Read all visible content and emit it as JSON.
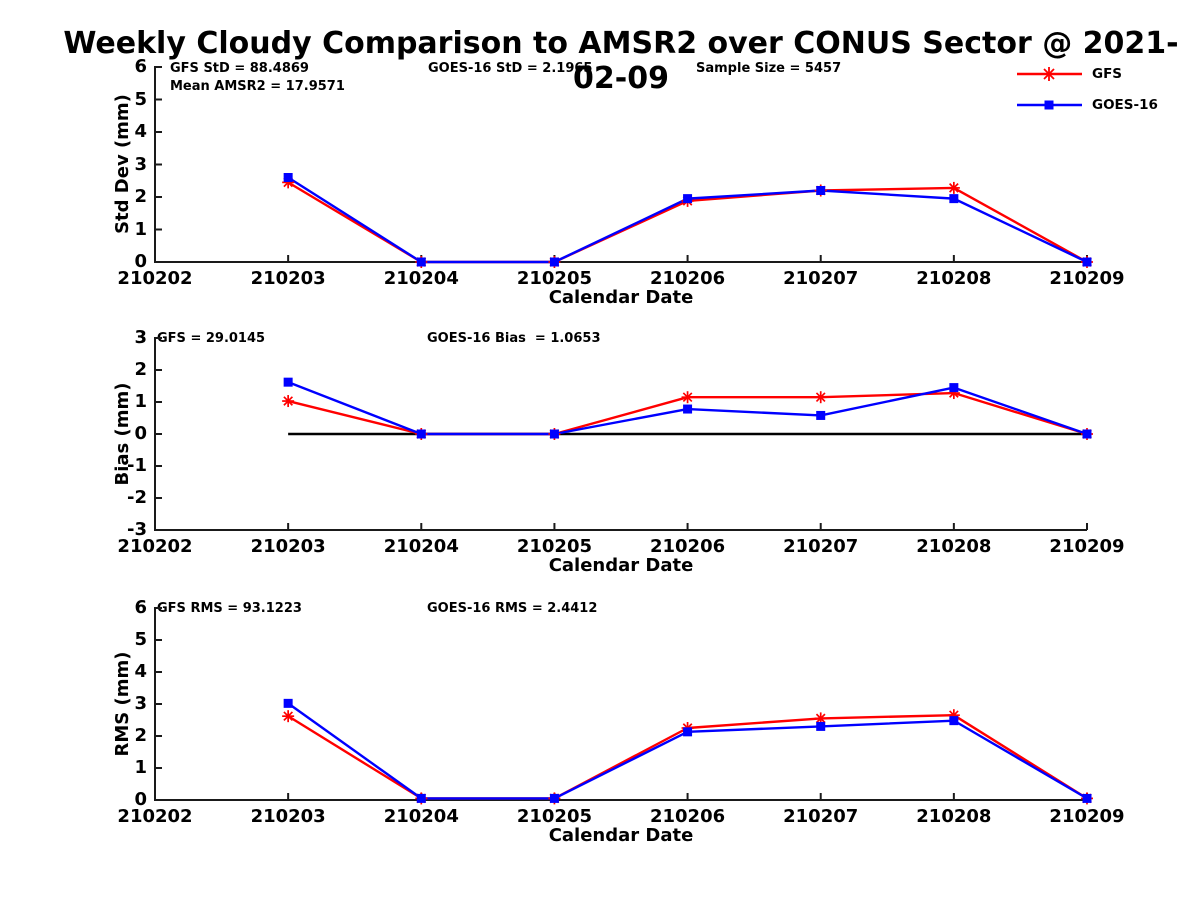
{
  "title": "Weekly Cloudy Comparison to AMSR2 over CONUS Sector @ 2021-02-09",
  "colors": {
    "gfs": "#ff0000",
    "goes16": "#0000ff",
    "axis": "#1a1a1a",
    "zero_line": "#000000"
  },
  "legend": {
    "items": [
      "GFS",
      "GOES-16"
    ]
  },
  "chart_data": [
    {
      "type": "line",
      "panel": "std-dev",
      "ylabel": "Std Dev (mm)",
      "xlabel": "Calendar Date",
      "ylim": [
        0,
        6
      ],
      "yticks": [
        0,
        1,
        2,
        3,
        4,
        5,
        6
      ],
      "x_ticks": [
        "210202",
        "210203",
        "210204",
        "210205",
        "210206",
        "210207",
        "210208",
        "210209"
      ],
      "x": [
        "210203",
        "210204",
        "210205",
        "210206",
        "210207",
        "210208",
        "210209"
      ],
      "grid": false,
      "series": [
        {
          "name": "GFS",
          "color": "#ff0000",
          "marker": "asterisk",
          "values": [
            2.45,
            0.0,
            0.0,
            1.88,
            2.2,
            2.28,
            0.0
          ]
        },
        {
          "name": "GOES-16",
          "color": "#0000ff",
          "marker": "square",
          "values": [
            2.6,
            0.0,
            0.0,
            1.95,
            2.2,
            1.95,
            0.0
          ]
        }
      ],
      "annotations": [
        "GFS StD = 88.4869",
        "Mean AMSR2 = 17.9571",
        "GOES-16 StD = 2.1965",
        "Sample Size = 5457"
      ]
    },
    {
      "type": "line",
      "panel": "bias",
      "ylabel": "Bias (mm)",
      "xlabel": "Calendar Date",
      "ylim": [
        -3,
        3
      ],
      "yticks": [
        -3,
        -2,
        -1,
        0,
        1,
        2,
        3
      ],
      "x_ticks": [
        "210202",
        "210203",
        "210204",
        "210205",
        "210206",
        "210207",
        "210208",
        "210209"
      ],
      "x": [
        "210203",
        "210204",
        "210205",
        "210206",
        "210207",
        "210208",
        "210209"
      ],
      "grid": false,
      "zero_line": true,
      "series": [
        {
          "name": "GFS",
          "color": "#ff0000",
          "marker": "asterisk",
          "values": [
            1.03,
            0.0,
            0.0,
            1.15,
            1.15,
            1.28,
            0.0
          ]
        },
        {
          "name": "GOES-16",
          "color": "#0000ff",
          "marker": "square",
          "values": [
            1.62,
            0.0,
            0.0,
            0.78,
            0.58,
            1.45,
            0.0
          ]
        }
      ],
      "annotations": [
        "GFS = 29.0145",
        "GOES-16 Bias  = 1.0653"
      ]
    },
    {
      "type": "line",
      "panel": "rms",
      "ylabel": "RMS (mm)",
      "xlabel": "Calendar Date",
      "ylim": [
        0,
        6
      ],
      "yticks": [
        0,
        1,
        2,
        3,
        4,
        5,
        6
      ],
      "x_ticks": [
        "210202",
        "210203",
        "210204",
        "210205",
        "210206",
        "210207",
        "210208",
        "210209"
      ],
      "x": [
        "210203",
        "210204",
        "210205",
        "210206",
        "210207",
        "210208",
        "210209"
      ],
      "grid": false,
      "series": [
        {
          "name": "GFS",
          "color": "#ff0000",
          "marker": "asterisk",
          "values": [
            2.62,
            0.05,
            0.05,
            2.25,
            2.55,
            2.65,
            0.05
          ]
        },
        {
          "name": "GOES-16",
          "color": "#0000ff",
          "marker": "square",
          "values": [
            3.02,
            0.05,
            0.05,
            2.13,
            2.3,
            2.48,
            0.05
          ]
        }
      ],
      "annotations": [
        "GFS RMS = 93.1223",
        "GOES-16 RMS = 2.4412"
      ]
    }
  ]
}
